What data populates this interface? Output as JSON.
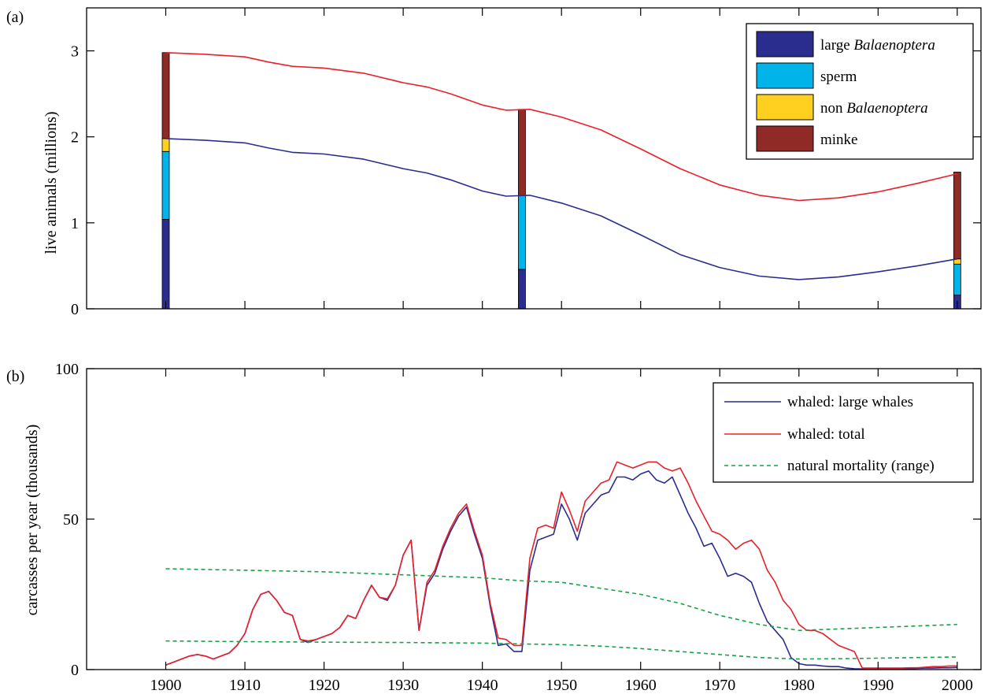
{
  "chart_data": [
    {
      "panel_label": "(a)",
      "type": "line",
      "ylabel": "live animals (millions)",
      "xlim": [
        1890,
        2003
      ],
      "ylim": [
        0,
        3.5
      ],
      "yticks": [
        0,
        1,
        2,
        3
      ],
      "legend_position": "top-right",
      "legend": [
        {
          "label": "large ",
          "label_italic": "Balaenoptera",
          "color": "#2b2d8e"
        },
        {
          "label": "sperm",
          "label_italic": "",
          "color": "#00b4ea"
        },
        {
          "label": "non ",
          "label_italic": "Balaenoptera",
          "color": "#ffd020"
        },
        {
          "label": "minke",
          "label_italic": "",
          "color": "#8f2a26"
        }
      ],
      "stacked_bars": [
        {
          "x": 1900,
          "segments": [
            1.04,
            0.79,
            0.15,
            1.0
          ]
        },
        {
          "x": 1945,
          "segments": [
            0.46,
            0.86,
            0.0,
            1.0
          ]
        },
        {
          "x": 2000,
          "segments": [
            0.16,
            0.36,
            0.06,
            1.01
          ]
        }
      ],
      "series": [
        {
          "name": "",
          "color": "#e8212a",
          "x": [
            1900,
            1905,
            1910,
            1913,
            1916,
            1920,
            1925,
            1930,
            1933,
            1936,
            1940,
            1943,
            1946,
            1950,
            1955,
            1960,
            1965,
            1970,
            1975,
            1980,
            1985,
            1990,
            1995,
            2000
          ],
          "y": [
            2.98,
            2.96,
            2.93,
            2.87,
            2.82,
            2.8,
            2.74,
            2.63,
            2.58,
            2.5,
            2.37,
            2.31,
            2.32,
            2.23,
            2.08,
            1.86,
            1.63,
            1.44,
            1.32,
            1.26,
            1.29,
            1.36,
            1.46,
            1.57
          ]
        },
        {
          "name": "",
          "color": "#2b2d8e",
          "x": [
            1900,
            1905,
            1910,
            1913,
            1916,
            1920,
            1925,
            1930,
            1933,
            1936,
            1940,
            1943,
            1946,
            1950,
            1955,
            1960,
            1965,
            1970,
            1975,
            1980,
            1985,
            1990,
            1995,
            2000
          ],
          "y": [
            1.98,
            1.96,
            1.93,
            1.87,
            1.82,
            1.8,
            1.74,
            1.63,
            1.58,
            1.5,
            1.37,
            1.31,
            1.32,
            1.23,
            1.08,
            0.86,
            0.63,
            0.48,
            0.38,
            0.34,
            0.37,
            0.43,
            0.5,
            0.58
          ]
        }
      ]
    },
    {
      "panel_label": "(b)",
      "type": "line",
      "ylabel": "carcasses per year (thousands)",
      "xlim": [
        1890,
        2003
      ],
      "ylim": [
        0,
        100
      ],
      "yticks": [
        0,
        50,
        100
      ],
      "xticks": [
        1900,
        1910,
        1920,
        1930,
        1940,
        1950,
        1960,
        1970,
        1980,
        1990,
        2000
      ],
      "legend_position": "top-right",
      "legend": [
        {
          "label": "whaled: large whales",
          "color": "#2b2d8e",
          "style": "solid"
        },
        {
          "label": "whaled: total",
          "color": "#e8212a",
          "style": "solid"
        },
        {
          "label": "natural mortality (range)",
          "color": "#1aa04a",
          "style": "dashed"
        }
      ],
      "series": [
        {
          "name": "whaled: large whales",
          "color": "#2b2d8e",
          "style": "solid",
          "x": [
            1900,
            1901,
            1902,
            1903,
            1904,
            1905,
            1906,
            1907,
            1908,
            1909,
            1910,
            1911,
            1912,
            1913,
            1914,
            1915,
            1916,
            1917,
            1918,
            1919,
            1920,
            1921,
            1922,
            1923,
            1924,
            1925,
            1926,
            1927,
            1928,
            1929,
            1930,
            1931,
            1932,
            1933,
            1934,
            1935,
            1936,
            1937,
            1938,
            1939,
            1940,
            1941,
            1942,
            1943,
            1944,
            1945,
            1946,
            1947,
            1948,
            1949,
            1950,
            1951,
            1952,
            1953,
            1954,
            1955,
            1956,
            1957,
            1958,
            1959,
            1960,
            1961,
            1962,
            1963,
            1964,
            1965,
            1966,
            1967,
            1968,
            1969,
            1970,
            1971,
            1972,
            1973,
            1974,
            1975,
            1976,
            1977,
            1978,
            1979,
            1980,
            1981,
            1982,
            1983,
            1984,
            1985,
            1986,
            1987,
            1988,
            1989,
            1990,
            1991,
            1992,
            1993,
            1994,
            1995,
            1996,
            1997,
            1998,
            1999,
            2000
          ],
          "y": [
            1.5,
            2.5,
            3.5,
            4.5,
            5,
            4.5,
            3.5,
            4.5,
            5.5,
            8,
            12,
            20,
            25,
            26,
            23,
            19,
            18,
            10,
            9,
            10,
            11,
            12,
            14,
            18,
            17,
            23,
            28,
            24,
            23,
            28,
            38,
            43,
            13,
            28,
            32,
            40,
            46,
            51,
            54,
            45,
            37,
            21,
            8,
            8.5,
            6,
            6,
            33,
            43,
            44,
            45,
            55,
            50,
            43,
            52,
            55,
            58,
            59,
            64,
            64,
            63,
            65,
            66,
            63,
            62,
            64,
            58,
            52,
            47,
            41,
            42,
            37,
            31,
            32,
            31,
            29,
            22,
            16,
            13,
            10,
            4,
            2,
            1.5,
            1.5,
            1.2,
            1,
            1,
            0.5,
            0.3,
            0.2,
            0.2,
            0.2,
            0.2,
            0.3,
            0.3,
            0.3,
            0.4,
            0.5,
            0.5,
            0.6,
            0.6,
            0.7
          ]
        },
        {
          "name": "whaled: total",
          "color": "#e8212a",
          "style": "solid",
          "x": [
            1900,
            1901,
            1902,
            1903,
            1904,
            1905,
            1906,
            1907,
            1908,
            1909,
            1910,
            1911,
            1912,
            1913,
            1914,
            1915,
            1916,
            1917,
            1918,
            1919,
            1920,
            1921,
            1922,
            1923,
            1924,
            1925,
            1926,
            1927,
            1928,
            1929,
            1930,
            1931,
            1932,
            1933,
            1934,
            1935,
            1936,
            1937,
            1938,
            1939,
            1940,
            1941,
            1942,
            1943,
            1944,
            1945,
            1946,
            1947,
            1948,
            1949,
            1950,
            1951,
            1952,
            1953,
            1954,
            1955,
            1956,
            1957,
            1958,
            1959,
            1960,
            1961,
            1962,
            1963,
            1964,
            1965,
            1966,
            1967,
            1968,
            1969,
            1970,
            1971,
            1972,
            1973,
            1974,
            1975,
            1976,
            1977,
            1978,
            1979,
            1980,
            1981,
            1982,
            1983,
            1984,
            1985,
            1986,
            1987,
            1988,
            1989,
            1990,
            1991,
            1992,
            1993,
            1994,
            1995,
            1996,
            1997,
            1998,
            1999,
            2000
          ],
          "y": [
            1.5,
            2.5,
            3.5,
            4.5,
            5,
            4.5,
            3.5,
            4.5,
            5.5,
            8,
            12,
            20,
            25,
            26,
            23,
            19,
            18,
            10,
            9.5,
            10,
            11,
            12,
            14,
            18,
            17,
            23,
            28,
            24,
            23.5,
            28,
            38,
            43,
            13,
            29,
            33,
            41,
            47,
            52,
            55,
            46,
            38,
            22,
            10.5,
            10,
            8,
            8,
            37,
            47,
            48,
            47,
            59,
            53,
            46,
            56,
            59,
            62,
            63,
            69,
            68,
            67,
            68,
            69,
            69,
            67,
            66,
            67,
            62,
            56,
            51,
            46,
            45,
            43,
            40,
            42,
            43,
            40,
            33,
            29,
            23,
            20,
            15,
            13,
            13,
            12,
            10,
            8,
            7,
            6,
            0.5,
            0.5,
            0.5,
            0.5,
            0.5,
            0.5,
            0.6,
            0.6,
            0.8,
            1,
            1,
            1.2,
            1.2
          ]
        },
        {
          "name": "natural mortality (range)",
          "color": "#1aa04a",
          "style": "dashed",
          "x": [
            1900,
            1910,
            1920,
            1930,
            1940,
            1945,
            1950,
            1955,
            1960,
            1965,
            1970,
            1975,
            1980,
            1985,
            1990,
            1995,
            2000
          ],
          "y": [
            33.5,
            33,
            32.5,
            31.5,
            30.5,
            29.5,
            29,
            27,
            25,
            22,
            18,
            15,
            13,
            13.5,
            14,
            14.5,
            15
          ]
        },
        {
          "name": "natural mortality (range)",
          "color": "#1aa04a",
          "style": "dashed",
          "x": [
            1900,
            1910,
            1920,
            1930,
            1940,
            1945,
            1950,
            1955,
            1960,
            1965,
            1970,
            1975,
            1980,
            1985,
            1990,
            1995,
            2000
          ],
          "y": [
            9.5,
            9.3,
            9.1,
            9,
            8.8,
            8.5,
            8.3,
            7.8,
            7,
            6,
            5,
            4,
            3.5,
            3.6,
            3.8,
            4,
            4.2
          ]
        }
      ]
    }
  ]
}
